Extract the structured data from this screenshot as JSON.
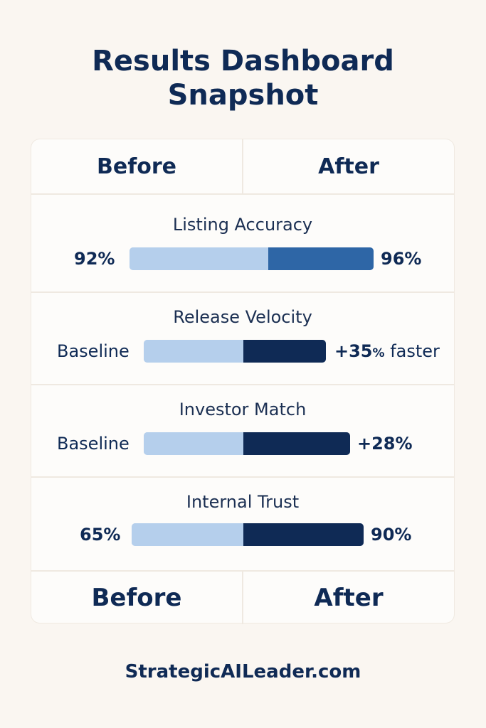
{
  "title_line1": "Results Dashboard",
  "title_line2": "Snapshot",
  "header": {
    "before": "Before",
    "after": "After"
  },
  "footer_header": {
    "before": "Before",
    "after": "After"
  },
  "colors": {
    "before_bar": "#b5cfec",
    "after_bar_dark": "#0f2a55",
    "after_bar_mid": "#2e66a6"
  },
  "chart_data": {
    "type": "bar",
    "metrics": [
      {
        "label": "Listing Accuracy",
        "before": "92%",
        "after": "96%",
        "before_value": 92,
        "after_value": 96,
        "after_color": "#2e66a6"
      },
      {
        "label": "Release Velocity",
        "before": "Baseline",
        "after_num": "+35",
        "after_pct": "%",
        "after_word": " faster",
        "after_color": "#0f2a55"
      },
      {
        "label": "Investor Match",
        "before": "Baseline",
        "after": "+28%",
        "after_color": "#0f2a55"
      },
      {
        "label": "Internal Trust",
        "before": "65%",
        "after": "90%",
        "before_value": 65,
        "after_value": 90,
        "after_color": "#0f2a55"
      }
    ]
  },
  "website": "StrategicAILeader.com"
}
